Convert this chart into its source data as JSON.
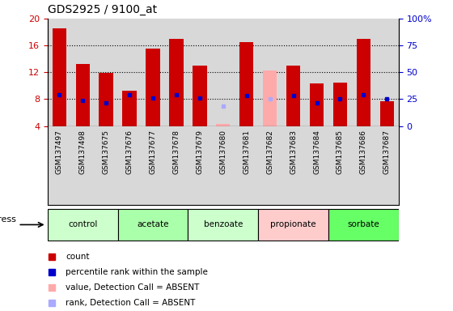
{
  "title": "GDS2925 / 9100_at",
  "samples": [
    "GSM137497",
    "GSM137498",
    "GSM137675",
    "GSM137676",
    "GSM137677",
    "GSM137678",
    "GSM137679",
    "GSM137680",
    "GSM137681",
    "GSM137682",
    "GSM137683",
    "GSM137684",
    "GSM137685",
    "GSM137686",
    "GSM137687"
  ],
  "count_values": [
    18.5,
    13.2,
    11.9,
    9.2,
    15.5,
    17.0,
    13.0,
    null,
    16.5,
    null,
    13.0,
    10.4,
    10.5,
    17.0,
    7.7
  ],
  "percentile_values": [
    8.7,
    7.8,
    7.5,
    8.7,
    8.2,
    8.7,
    8.2,
    null,
    8.5,
    null,
    8.5,
    7.5,
    8.1,
    8.7,
    8.0
  ],
  "absent_count": [
    null,
    null,
    null,
    null,
    null,
    null,
    null,
    4.3,
    null,
    12.3,
    null,
    null,
    null,
    null,
    null
  ],
  "absent_rank": [
    null,
    null,
    null,
    null,
    null,
    null,
    null,
    7.0,
    null,
    8.0,
    null,
    null,
    null,
    null,
    null
  ],
  "groups": [
    {
      "name": "control",
      "indices": [
        0,
        1,
        2
      ],
      "color": "#ccffcc"
    },
    {
      "name": "acetate",
      "indices": [
        3,
        4,
        5
      ],
      "color": "#aaffaa"
    },
    {
      "name": "benzoate",
      "indices": [
        6,
        7,
        8
      ],
      "color": "#ccffcc"
    },
    {
      "name": "propionate",
      "indices": [
        9,
        10,
        11
      ],
      "color": "#ffcccc"
    },
    {
      "name": "sorbate",
      "indices": [
        12,
        13,
        14
      ],
      "color": "#66ff66"
    }
  ],
  "ylim_left": [
    4,
    20
  ],
  "ylim_right": [
    0,
    100
  ],
  "bar_color": "#cc0000",
  "absent_bar_color": "#ffaaaa",
  "blue_marker_color": "#0000cc",
  "absent_rank_color": "#aaaaff",
  "tick_color_left": "#cc0000",
  "tick_color_right": "#0000cc",
  "left_yticks": [
    4,
    8,
    12,
    16,
    20
  ],
  "right_yticks": [
    0,
    25,
    50,
    75,
    100
  ],
  "right_yticklabels": [
    "0",
    "25",
    "50",
    "75",
    "100%"
  ],
  "stress_label": "stress",
  "legend_items": [
    {
      "color": "#cc0000",
      "label": "count"
    },
    {
      "color": "#0000cc",
      "label": "percentile rank within the sample"
    },
    {
      "color": "#ffaaaa",
      "label": "value, Detection Call = ABSENT"
    },
    {
      "color": "#aaaaff",
      "label": "rank, Detection Call = ABSENT"
    }
  ]
}
